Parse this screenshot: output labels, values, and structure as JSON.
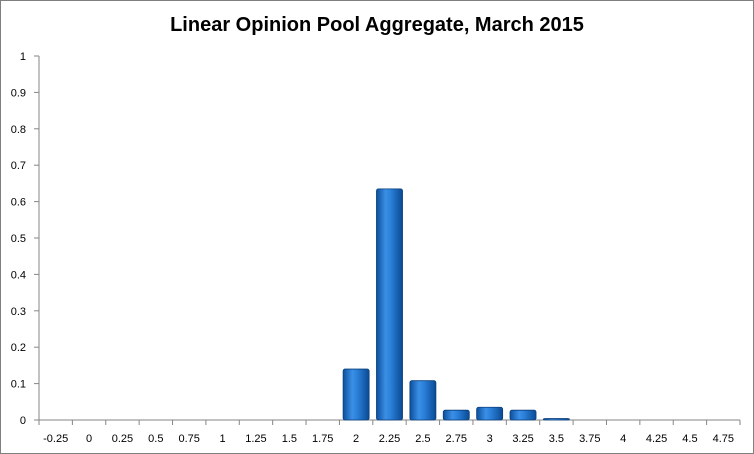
{
  "chart_data": {
    "type": "bar",
    "title": "Linear Opinion Pool Aggregate, March 2015",
    "xlabel": "",
    "ylabel": "",
    "categories": [
      "-0.25",
      "0",
      "0.25",
      "0.5",
      "0.75",
      "1",
      "1.25",
      "1.5",
      "1.75",
      "2",
      "2.25",
      "2.5",
      "2.75",
      "3",
      "3.25",
      "3.5",
      "3.75",
      "4",
      "4.25",
      "4.5",
      "4.75"
    ],
    "values": [
      0,
      0,
      0,
      0,
      0,
      0,
      0,
      0,
      0,
      0.14,
      0.635,
      0.108,
      0.027,
      0.035,
      0.027,
      0.004,
      0,
      0,
      0,
      0,
      0
    ],
    "ylim": [
      0,
      1
    ],
    "yticks": [
      "0",
      "0.1",
      "0.2",
      "0.3",
      "0.4",
      "0.5",
      "0.6",
      "0.7",
      "0.8",
      "0.9",
      "1"
    ],
    "grid": false,
    "legend": "none",
    "bar_color": "#1f6fc6"
  }
}
